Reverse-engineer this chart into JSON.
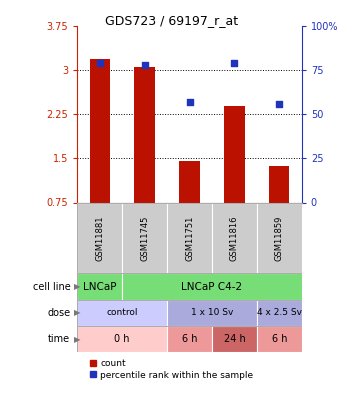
{
  "title": "GDS723 / 69197_r_at",
  "samples": [
    "GSM11881",
    "GSM11745",
    "GSM11751",
    "GSM11816",
    "GSM11859"
  ],
  "bar_values": [
    3.2,
    3.05,
    1.45,
    2.4,
    1.37
  ],
  "percentile_values": [
    79,
    78,
    57,
    79,
    56
  ],
  "bar_color": "#bb1100",
  "dot_color": "#2233bb",
  "ylim_left": [
    0.75,
    3.75
  ],
  "ylim_right": [
    0,
    100
  ],
  "yticks_left": [
    0.75,
    1.5,
    2.25,
    3.0,
    3.75
  ],
  "yticks_right": [
    0,
    25,
    50,
    75,
    100
  ],
  "ytick_labels_left": [
    "0.75",
    "1.5",
    "2.25",
    "3",
    "3.75"
  ],
  "ytick_labels_right": [
    "0",
    "25",
    "50",
    "75",
    "100%"
  ],
  "hlines": [
    3.0,
    2.25,
    1.5
  ],
  "sample_label_bg": "#cccccc",
  "axis_color_left": "#cc2200",
  "axis_color_right": "#2233bb",
  "cell_configs": [
    [
      0.5,
      1.5,
      "LNCaP",
      "#77dd77"
    ],
    [
      1.5,
      5.5,
      "LNCaP C4-2",
      "#77dd77"
    ]
  ],
  "dose_configs": [
    [
      0.5,
      2.5,
      "control",
      "#ccccff"
    ],
    [
      2.5,
      4.5,
      "1 x 10 Sv",
      "#aaaadd"
    ],
    [
      4.5,
      5.5,
      "4 x 2.5 Sv",
      "#aaaadd"
    ]
  ],
  "time_configs": [
    [
      0.5,
      2.5,
      "0 h",
      "#ffcccc"
    ],
    [
      2.5,
      3.5,
      "6 h",
      "#ee9999"
    ],
    [
      3.5,
      4.5,
      "24 h",
      "#cc6666"
    ],
    [
      4.5,
      5.5,
      "6 h",
      "#ee9999"
    ]
  ],
  "row_labels": [
    "cell line",
    "dose",
    "time"
  ],
  "legend_count_label": "count",
  "legend_pct_label": "percentile rank within the sample"
}
